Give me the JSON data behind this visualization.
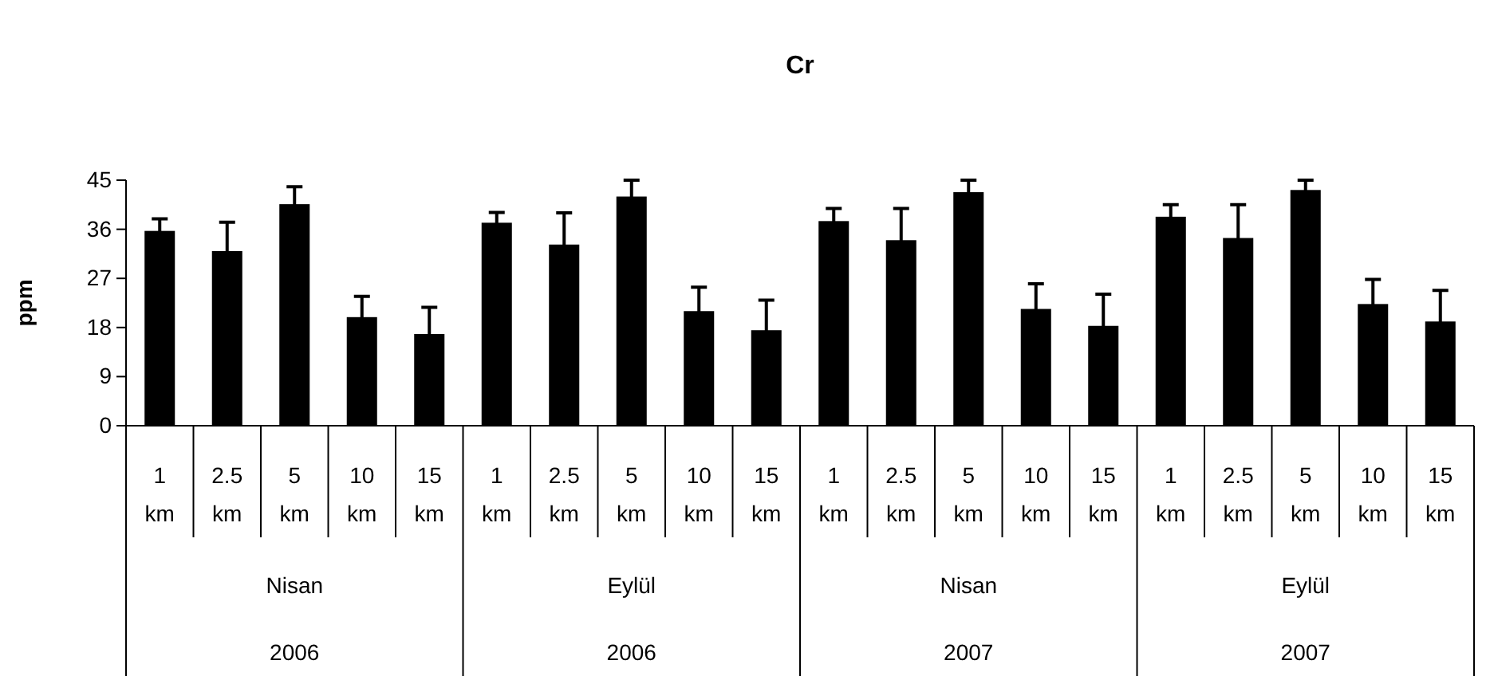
{
  "chart_data": {
    "type": "bar",
    "title": "Cr",
    "ylabel": "ppm",
    "categories": [
      "1 km",
      "2.5 km",
      "5 km",
      "10 km",
      "15 km",
      "1 km",
      "2.5 km",
      "5 km",
      "10 km",
      "15 km",
      "1 km",
      "2.5 km",
      "5 km",
      "10 km",
      "15 km",
      "1 km",
      "2.5 km",
      "5 km",
      "10 km",
      "15 km"
    ],
    "values": [
      35.7,
      32.0,
      40.6,
      19.9,
      16.8,
      37.2,
      33.2,
      42.0,
      21.0,
      17.5,
      37.5,
      34.0,
      42.8,
      21.4,
      18.3,
      38.3,
      34.4,
      43.2,
      22.3,
      19.1
    ],
    "errors": [
      2.2,
      5.3,
      3.2,
      3.8,
      4.9,
      1.9,
      5.8,
      3.0,
      4.4,
      5.5,
      2.3,
      5.8,
      2.2,
      4.6,
      5.8,
      2.2,
      6.1,
      1.8,
      4.5,
      5.7
    ],
    "color": "#000000",
    "annotations": [
      "Nisan",
      "Eylül",
      "Nisan",
      "Eylül",
      "2006",
      "2006",
      "2007",
      "2007"
    ],
    "ylim": [
      0,
      45
    ],
    "yticks": [
      0,
      9,
      18,
      27,
      36,
      45
    ],
    "grid": false
  }
}
